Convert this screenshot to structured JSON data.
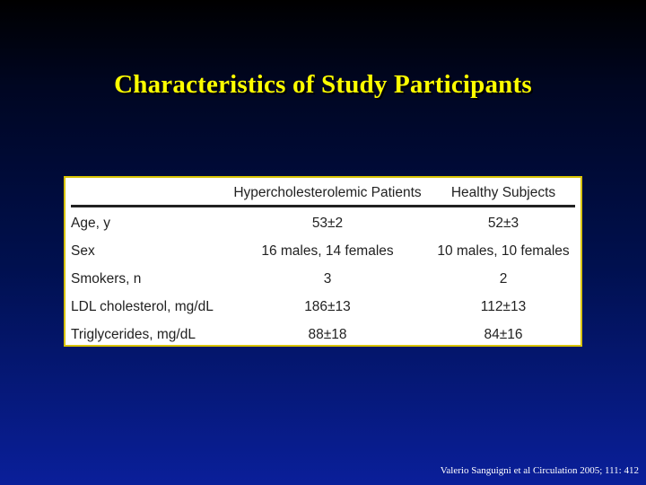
{
  "slide": {
    "title": "Characteristics of Study Participants",
    "citation": "Valerio Sanguigni et al Circulation 2005; 111: 412"
  },
  "table": {
    "headers": [
      "",
      "Hypercholesterolemic Patients",
      "Healthy Subjects"
    ],
    "rows": [
      [
        "Age, y",
        "53±2",
        "52±3"
      ],
      [
        "Sex",
        "16 males, 14 females",
        "10 males, 10 females"
      ],
      [
        "Smokers, n",
        "3",
        "2"
      ],
      [
        "LDL cholesterol, mg/dL",
        "186±13",
        "112±13"
      ],
      [
        "Triglycerides, mg/dL",
        "88±18",
        "84±16"
      ]
    ]
  },
  "colors": {
    "title": "#ffff00",
    "table_border": "#d8c300",
    "background_top": "#000000",
    "background_bottom": "#0a1f9a"
  }
}
